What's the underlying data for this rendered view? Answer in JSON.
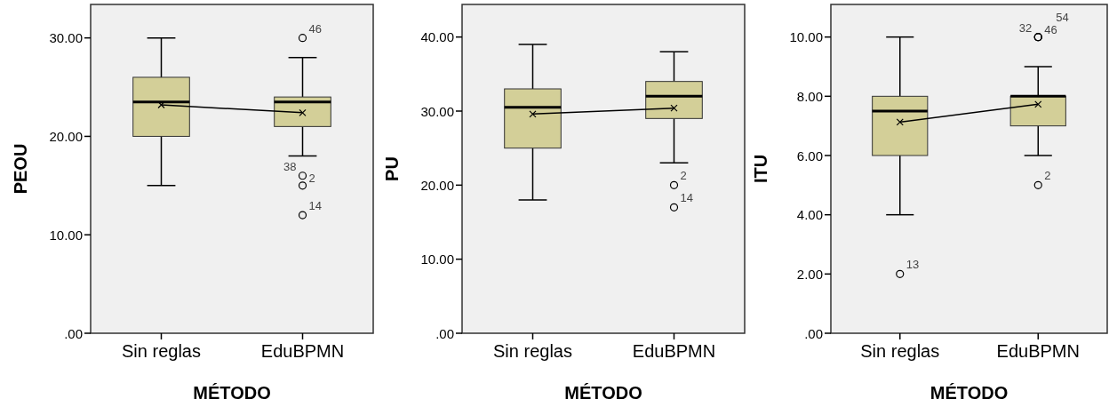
{
  "chart_data": [
    {
      "type": "box",
      "xlabel": "MÉTODO",
      "ylabel": "PEOU",
      "categories": [
        "Sin reglas",
        "EduBPMN"
      ],
      "ylim": [
        0,
        33.4
      ],
      "yticks": [
        {
          "value": 0,
          "label": ".00"
        },
        {
          "value": 10,
          "label": "10.00"
        },
        {
          "value": 20,
          "label": "20.00"
        },
        {
          "value": 30,
          "label": "30.00"
        }
      ],
      "grid": false,
      "color": "#d3cf98",
      "boxes": [
        {
          "low": 15,
          "q1": 20,
          "median": 23.5,
          "q3": 26,
          "high": 30
        },
        {
          "low": 18,
          "q1": 21,
          "median": 23.5,
          "q3": 24,
          "high": 28,
          "outliers": [
            30,
            16,
            15,
            12
          ]
        }
      ],
      "series": [
        {
          "type": "line",
          "values": [
            23.2,
            22.4
          ],
          "color": "#000000",
          "marker": "cross"
        }
      ],
      "annotations": [
        "46",
        "38",
        "2",
        "14"
      ]
    },
    {
      "type": "box",
      "xlabel": "MÉTODO",
      "ylabel": "PU",
      "categories": [
        "Sin reglas",
        "EduBPMN"
      ],
      "ylim": [
        0,
        44.4
      ],
      "yticks": [
        {
          "value": 0,
          "label": ".00"
        },
        {
          "value": 10,
          "label": "10.00"
        },
        {
          "value": 20,
          "label": "20.00"
        },
        {
          "value": 30,
          "label": "30.00"
        },
        {
          "value": 40,
          "label": "40.00"
        }
      ],
      "grid": false,
      "color": "#d3cf98",
      "boxes": [
        {
          "low": 18,
          "q1": 25,
          "median": 30.5,
          "q3": 33,
          "high": 39
        },
        {
          "low": 23,
          "q1": 29,
          "median": 32,
          "q3": 34,
          "high": 38,
          "outliers": [
            20,
            17
          ]
        }
      ],
      "series": [
        {
          "type": "line",
          "values": [
            29.6,
            30.4
          ],
          "color": "#000000",
          "marker": "cross"
        }
      ],
      "annotations": [
        "2",
        "14"
      ]
    },
    {
      "type": "box",
      "xlabel": "MÉTODO",
      "ylabel": "ITU",
      "categories": [
        "Sin reglas",
        "EduBPMN"
      ],
      "ylim": [
        0,
        11.1
      ],
      "yticks": [
        {
          "value": 0,
          "label": ".00"
        },
        {
          "value": 2,
          "label": "2.00"
        },
        {
          "value": 4,
          "label": "4.00"
        },
        {
          "value": 6,
          "label": "6.00"
        },
        {
          "value": 8,
          "label": "8.00"
        },
        {
          "value": 10,
          "label": "10.00"
        }
      ],
      "grid": false,
      "color": "#d3cf98",
      "boxes": [
        {
          "low": 4,
          "q1": 6,
          "median": 7.5,
          "q3": 8,
          "high": 10,
          "outliers": [
            2
          ]
        },
        {
          "low": 6,
          "q1": 7,
          "median": 8,
          "q3": 8,
          "high": 9,
          "outliers": [
            10,
            10,
            10,
            5
          ]
        }
      ],
      "series": [
        {
          "type": "line",
          "values": [
            7.13,
            7.73
          ],
          "color": "#000000",
          "marker": "cross"
        }
      ],
      "annotations": [
        "13",
        "32",
        "46",
        "54",
        "2"
      ]
    }
  ]
}
